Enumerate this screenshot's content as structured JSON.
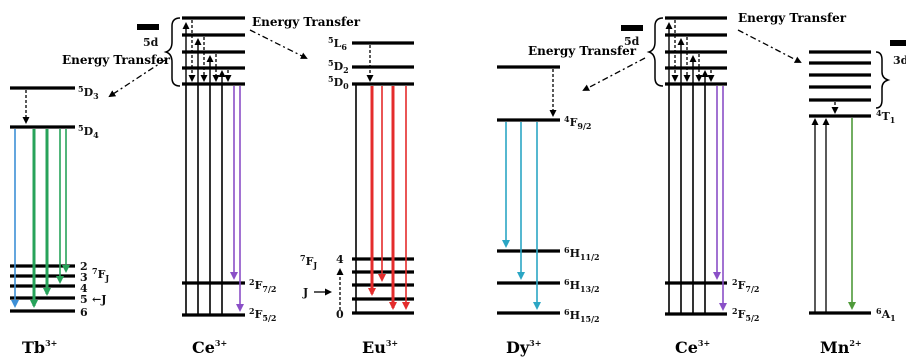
{
  "ions": {
    "tb": "Tb",
    "tb_charge": "3+",
    "ce1": "Ce",
    "ce1_charge": "3+",
    "eu": "Eu",
    "eu_charge": "3+",
    "dy": "Dy",
    "dy_charge": "3+",
    "ce2": "Ce",
    "ce2_charge": "3+",
    "mn": "Mn",
    "mn_charge": "2+"
  },
  "energy_transfer": {
    "label1": "Energy Transfer",
    "label2": "Energy Transfer",
    "label3": "Energy Transfer",
    "label4": "Energy Transfer"
  },
  "ce_levels": {
    "band": "5d",
    "f72": "F",
    "f72_pre": "2",
    "f72_sub": "7/2",
    "f52": "F",
    "f52_pre": "2",
    "f52_sub": "5/2",
    "band2": "5d",
    "f72b": "F",
    "f72b_pre": "2",
    "f72b_sub": "7/2",
    "f52b": "F",
    "f52b_pre": "2",
    "f52b_sub": "5/2"
  },
  "tb_levels": {
    "d3": "D",
    "d3_pre": "5",
    "d3_sub": "3",
    "d4": "D",
    "d4_pre": "5",
    "d4_sub": "4",
    "fj": "F",
    "fj_pre": "7",
    "fj_sub": "J",
    "j_arrow": "←J",
    "numbers": [
      "2",
      "3",
      "4",
      "5",
      "6"
    ]
  },
  "eu_levels": {
    "l6": "L",
    "l6_pre": "5",
    "l6_sub": "6",
    "d2": "D",
    "d2_pre": "5",
    "d2_sub": "2",
    "d0": "D",
    "d0_pre": "5",
    "d0_sub": "0",
    "fj": "F",
    "fj_pre": "7",
    "fj_sub": "J",
    "j_label": "J",
    "num_top": "4",
    "num_bottom": "0"
  },
  "dy_levels": {
    "f92": "F",
    "f92_pre": "4",
    "f92_sub": "9/2",
    "h112": "H",
    "h112_pre": "6",
    "h112_sub": "11/2",
    "h132": "H",
    "h132_pre": "6",
    "h132_sub": "13/2",
    "h152": "H",
    "h152_pre": "6",
    "h152_sub": "15/2"
  },
  "mn_levels": {
    "band": "3d",
    "t1": "T",
    "t1_pre": "4",
    "t1_sub": "1",
    "a1": "A",
    "a1_pre": "6",
    "a1_sub": "1"
  },
  "colors": {
    "tb_blue": "#3d8fd6",
    "tb_green": "#27a35a",
    "eu_red": "#e42c2c",
    "ce_purple": "#8a4fc7",
    "dy_cyan": "#2ba6c4",
    "mn_green": "#4f9a3a"
  }
}
